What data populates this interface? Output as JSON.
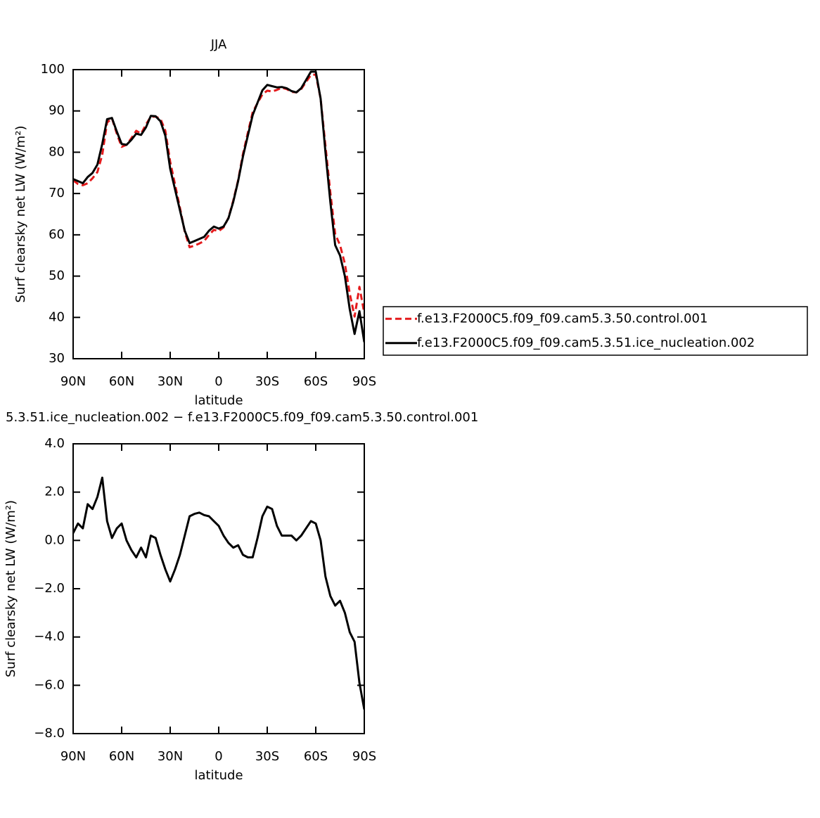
{
  "chart_data": [
    {
      "type": "line",
      "title": "JJA",
      "xlabel": "latitude",
      "ylabel": "Surf clearsky net LW (W/m²)",
      "x": [
        90,
        87,
        84,
        81,
        78,
        75,
        72,
        69,
        66,
        63,
        60,
        57,
        54,
        51,
        48,
        45,
        42,
        39,
        36,
        33,
        30,
        27,
        24,
        21,
        18,
        15,
        12,
        9,
        6,
        3,
        0,
        -3,
        -6,
        -9,
        -12,
        -15,
        -18,
        -21,
        -24,
        -27,
        -30,
        -33,
        -36,
        -39,
        -42,
        -45,
        -48,
        -51,
        -54,
        -57,
        -60,
        -63,
        -66,
        -69,
        -72,
        -75,
        -78,
        -81,
        -84,
        -87,
        -90
      ],
      "series": [
        {
          "name": "f.e13.F2000C5.f09_f09.cam5.3.50.control.001",
          "color": "#e41a1c",
          "linestyle": "dashed",
          "values": [
            73.2,
            72.3,
            72,
            72.5,
            73.7,
            75.2,
            79.4,
            87.2,
            88.2,
            84.5,
            81.3,
            81.8,
            83.4,
            85.2,
            84.5,
            86.7,
            88.6,
            88.6,
            88.1,
            85.2,
            77.7,
            72.2,
            66.6,
            60.8,
            57,
            57.4,
            57.9,
            58.5,
            60,
            61.2,
            60.9,
            61.8,
            64.1,
            68.3,
            73.2,
            79.6,
            84.7,
            89.7,
            91.9,
            94,
            94.9,
            94.7,
            95.1,
            95.6,
            95.3,
            94.6,
            94.5,
            95.3,
            97,
            98.7,
            98.8,
            93,
            81.5,
            70.3,
            60.2,
            57.5,
            53,
            45.8,
            40.2,
            47.4,
            41
          ]
        },
        {
          "name": "f.e13.F2000C5.f09_f09.cam5.3.51.ice_nucleation.002",
          "color": "#000000",
          "linestyle": "solid",
          "values": [
            73.5,
            73,
            72.5,
            74,
            75,
            77,
            82,
            88,
            88.3,
            85,
            82,
            81.8,
            83,
            84.5,
            84.2,
            86,
            88.8,
            88.7,
            87.5,
            84,
            76,
            71,
            66,
            61,
            58,
            58.5,
            59,
            59.5,
            61,
            62,
            61.5,
            62,
            64,
            68,
            73,
            79,
            84,
            89,
            92,
            95,
            96.3,
            96,
            95.7,
            95.8,
            95.5,
            94.8,
            94.5,
            95.5,
            97.5,
            99.5,
            99.5,
            93,
            80,
            68,
            57.5,
            55,
            50,
            42,
            36,
            41.5,
            34
          ]
        }
      ],
      "xlim": [
        90,
        -90
      ],
      "xticks": [
        {
          "value": 90,
          "label": "90N"
        },
        {
          "value": 60,
          "label": "60N"
        },
        {
          "value": 30,
          "label": "30N"
        },
        0,
        {
          "value": -30,
          "label": "30S"
        },
        {
          "value": -60,
          "label": "60S"
        },
        {
          "value": -90,
          "label": "90S"
        }
      ],
      "ylim": [
        30,
        100
      ],
      "yticks": [
        30,
        40,
        50,
        60,
        70,
        80,
        90,
        100
      ],
      "legend": "right"
    },
    {
      "type": "line",
      "title": "5.3.51.ice_nucleation.002 − f.e13.F2000C5.f09_f09.cam5.3.50.control.001",
      "xlabel": "latitude",
      "ylabel": "Surf clearsky net LW (W/m²)",
      "x": [
        90,
        87,
        84,
        81,
        78,
        75,
        72,
        69,
        66,
        63,
        60,
        57,
        54,
        51,
        48,
        45,
        42,
        39,
        36,
        33,
        30,
        27,
        24,
        21,
        18,
        15,
        12,
        9,
        6,
        3,
        0,
        -3,
        -6,
        -9,
        -12,
        -15,
        -18,
        -21,
        -24,
        -27,
        -30,
        -33,
        -36,
        -39,
        -42,
        -45,
        -48,
        -51,
        -54,
        -57,
        -60,
        -63,
        -66,
        -69,
        -72,
        -75,
        -78,
        -81,
        -84,
        -87,
        -90
      ],
      "color": "#000000",
      "values": [
        0.3,
        0.7,
        0.5,
        1.5,
        1.3,
        1.8,
        2.6,
        0.8,
        0.1,
        0.5,
        0.7,
        0,
        -0.4,
        -0.7,
        -0.3,
        -0.7,
        0.2,
        0.1,
        -0.6,
        -1.2,
        -1.7,
        -1.2,
        -0.6,
        0.2,
        1.0,
        1.1,
        1.15,
        1.05,
        1.0,
        0.8,
        0.6,
        0.2,
        -0.1,
        -0.3,
        -0.2,
        -0.6,
        -0.7,
        -0.7,
        0.1,
        1.0,
        1.4,
        1.3,
        0.6,
        0.2,
        0.2,
        0.2,
        0,
        0.2,
        0.5,
        0.8,
        0.7,
        0,
        -1.5,
        -2.3,
        -2.7,
        -2.5,
        -3.0,
        -3.8,
        -4.2,
        -5.9,
        -7.0
      ],
      "xlim": [
        90,
        -90
      ],
      "xticks": [
        {
          "value": 90,
          "label": "90N"
        },
        {
          "value": 60,
          "label": "60N"
        },
        {
          "value": 30,
          "label": "30N"
        },
        0,
        {
          "value": -30,
          "label": "30S"
        },
        {
          "value": -60,
          "label": "60S"
        },
        {
          "value": -90,
          "label": "90S"
        }
      ],
      "ylim": [
        -8,
        4
      ],
      "yticks": [
        {
          "value": -8,
          "label": "−8.0"
        },
        {
          "value": -6,
          "label": "−6.0"
        },
        {
          "value": -4,
          "label": "−4.0"
        },
        {
          "value": -2,
          "label": "−2.0"
        },
        {
          "value": 0,
          "label": "0.0"
        },
        {
          "value": 2,
          "label": "2.0"
        },
        {
          "value": 4,
          "label": "4.0"
        }
      ]
    }
  ]
}
